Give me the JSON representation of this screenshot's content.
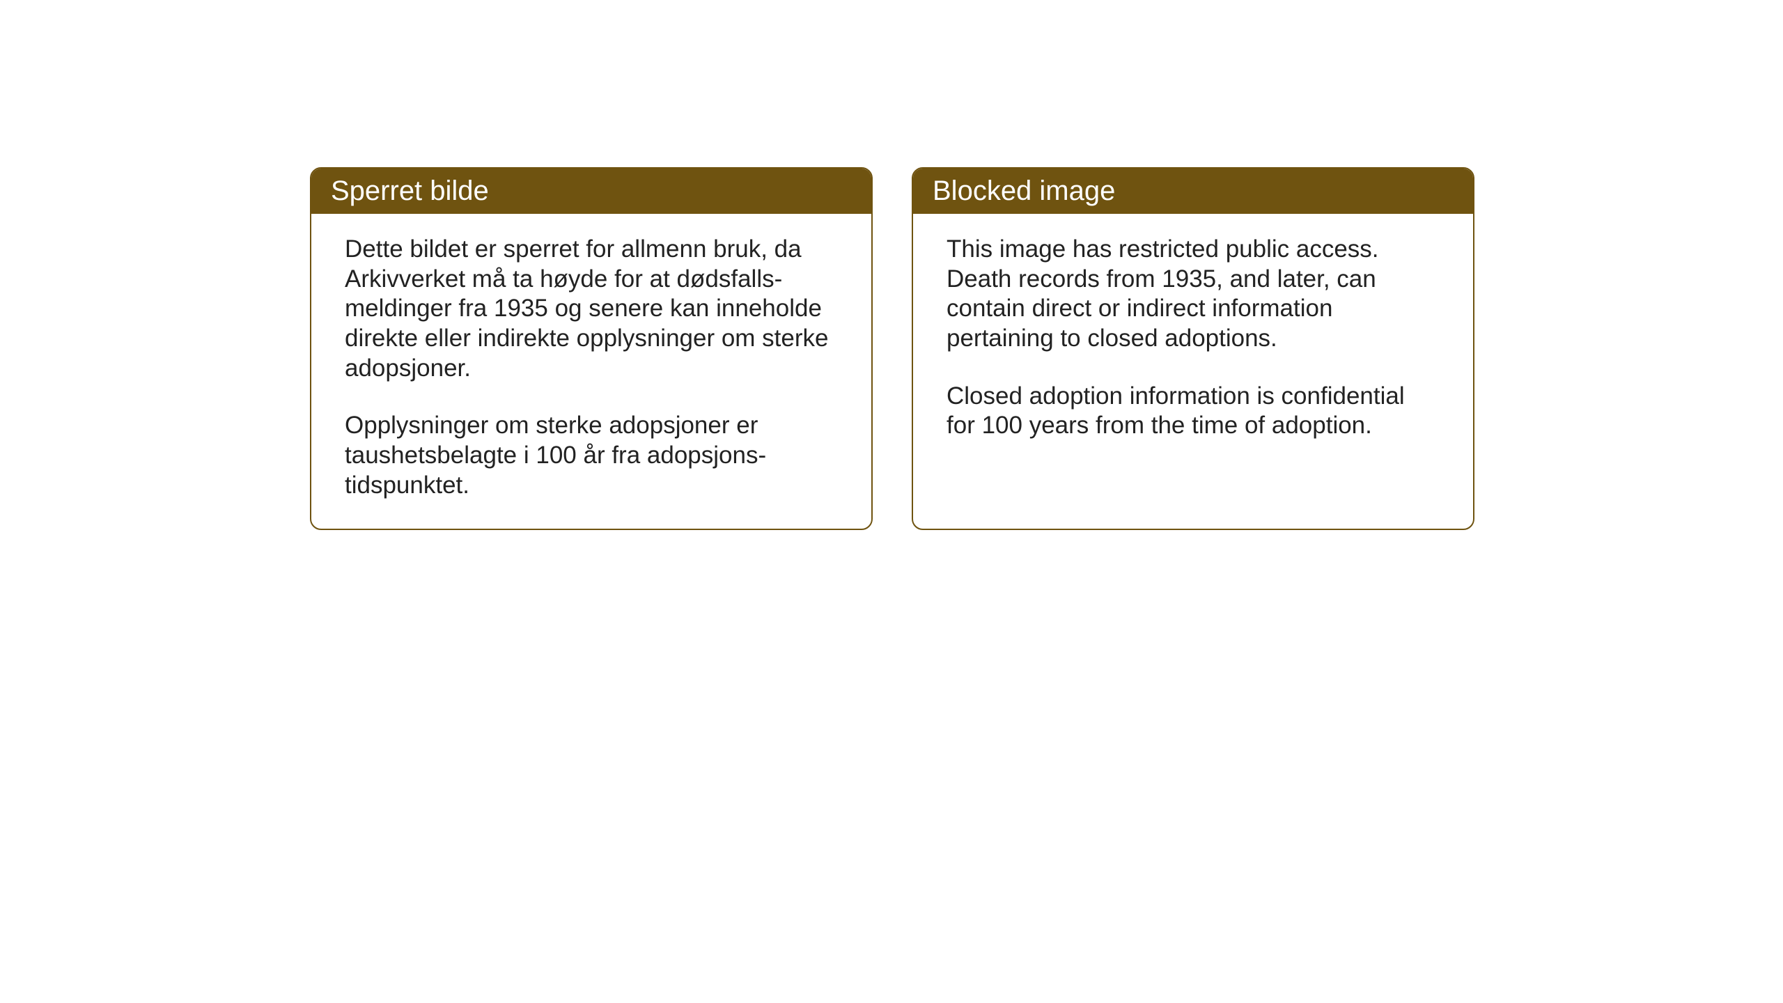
{
  "cards": {
    "norwegian": {
      "title": "Sperret bilde",
      "paragraph1": "Dette bildet er sperret for allmenn bruk, da Arkivverket må ta høyde for at dødsfalls-meldinger fra 1935 og senere kan inneholde direkte eller indirekte opplysninger om sterke adopsjoner.",
      "paragraph2": "Opplysninger om sterke adopsjoner er taushetsbelagte i 100 år fra adopsjons-tidspunktet."
    },
    "english": {
      "title": "Blocked image",
      "paragraph1": "This image has restricted public access. Death records from 1935, and later, can contain direct or indirect information pertaining to closed adoptions.",
      "paragraph2": "Closed adoption information is confidential for 100 years from the time of adoption."
    }
  },
  "styling": {
    "header_background_color": "#6f5310",
    "header_text_color": "#ffffff",
    "border_color": "#6f5310",
    "body_text_color": "#222222",
    "page_background_color": "#ffffff",
    "header_fontsize": 40,
    "body_fontsize": 35,
    "border_radius": 16,
    "border_width": 2
  }
}
